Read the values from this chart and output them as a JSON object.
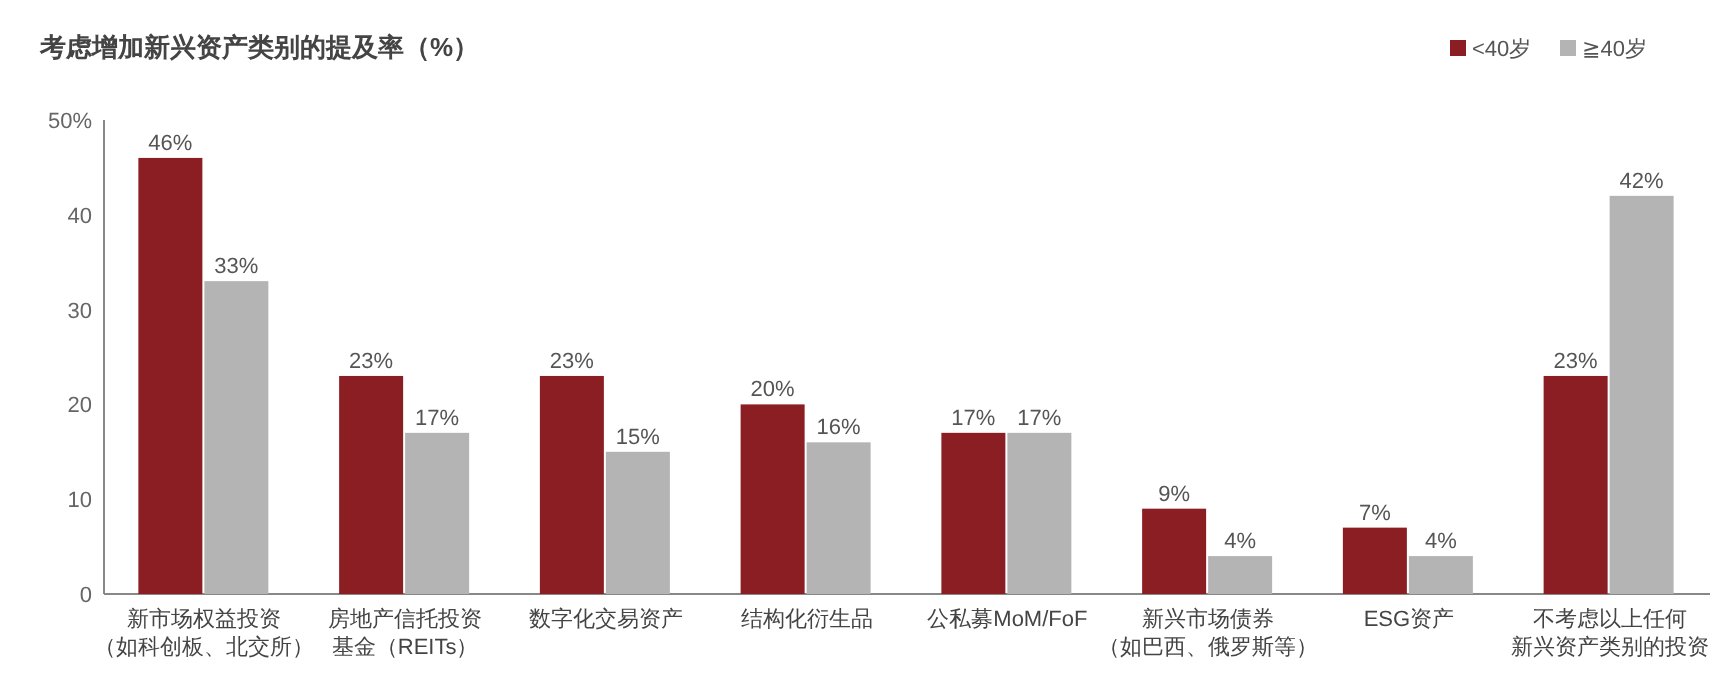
{
  "chart_data": {
    "type": "bar",
    "title": "考虑增加新兴资产类别的提及率（%）",
    "categories": [
      "新市场权益投资（如科创板、北交所）",
      "房地产信托投资基金（REITs）",
      "数字化交易资产",
      "结构化衍生品",
      "公私募MoM/FoF",
      "新兴市场债券（如巴西、俄罗斯等）",
      "ESG资产",
      "不考虑以上任何新兴资产类别的投资"
    ],
    "series": [
      {
        "name": "<40岁",
        "color": "#8b1e23",
        "values": [
          46,
          23,
          23,
          20,
          17,
          9,
          7,
          23
        ],
        "value_labels": [
          "46%",
          "23%",
          "23%",
          "20%",
          "17%",
          "9%",
          "7%",
          "23%"
        ]
      },
      {
        "name": "≧40岁",
        "color": "#b4b4b4",
        "values": [
          33,
          17,
          15,
          16,
          17,
          4,
          4,
          42
        ],
        "value_labels": [
          "33%",
          "17%",
          "15%",
          "16%",
          "17%",
          "4%",
          "4%",
          "42%"
        ]
      }
    ],
    "ylim": [
      0,
      50
    ],
    "yticks": [
      0,
      10,
      20,
      30,
      40,
      {
        "value": 50,
        "label": "50%"
      }
    ],
    "grid": false,
    "legend": "top right"
  }
}
